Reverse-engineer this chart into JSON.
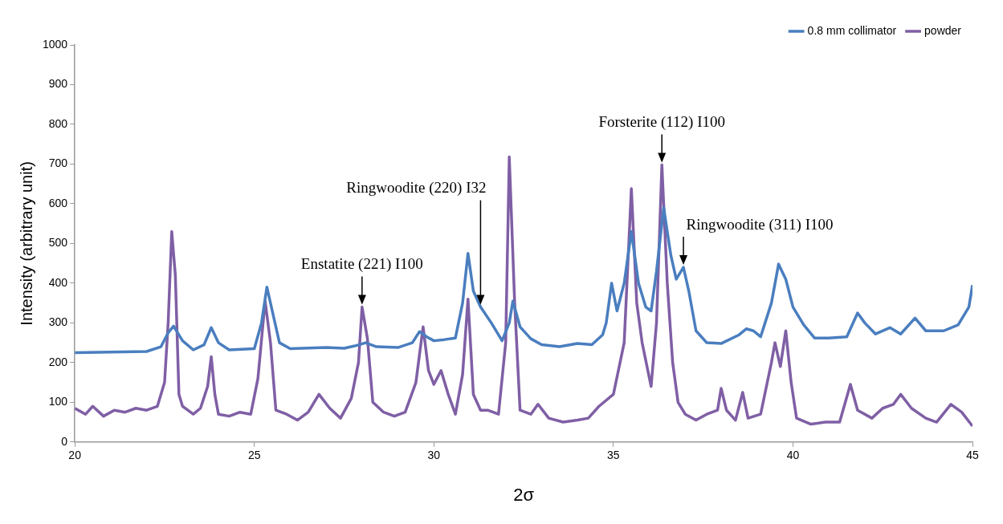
{
  "chart_data": {
    "type": "line",
    "xlabel": "2σ",
    "ylabel": "Intensity (arbitrary unit)",
    "xlim": [
      20,
      45
    ],
    "xticks": [
      20,
      25,
      30,
      35,
      40,
      45
    ],
    "ylim": [
      0,
      1000
    ],
    "yticks": [
      0,
      100,
      200,
      300,
      400,
      500,
      600,
      700,
      800,
      900,
      1000
    ],
    "grid": false,
    "legend": "top right",
    "marker": "none",
    "line_style": "solid",
    "annotations": [
      {
        "text": "Enstatite (221) I100",
        "x": 28,
        "y": 340
      },
      {
        "text": "Ringwoodite (220) I32",
        "x": 31.3,
        "y": 340
      },
      {
        "text": "Forsterite (112) I100",
        "x": 36.35,
        "y": 698
      },
      {
        "text": "Ringwoodite (311) I100",
        "x": 36.95,
        "y": 440
      }
    ],
    "series": [
      {
        "name": "0.8 mm collimator",
        "color": "#4a7ebf",
        "x": [
          20,
          22,
          22.4,
          22.6,
          22.75,
          23,
          23.3,
          23.6,
          23.8,
          24,
          24.3,
          25,
          25.2,
          25.35,
          25.5,
          25.7,
          26,
          27,
          27.5,
          27.8,
          28.1,
          28.4,
          29,
          29.4,
          29.6,
          29.8,
          30,
          30.3,
          30.6,
          30.8,
          30.95,
          31.1,
          31.3,
          31.6,
          31.9,
          32.1,
          32.2,
          32.4,
          32.7,
          33,
          33.5,
          34,
          34.4,
          34.7,
          34.8,
          34.95,
          35.1,
          35.3,
          35.5,
          35.7,
          35.9,
          36.05,
          36.2,
          36.4,
          36.6,
          36.75,
          36.95,
          37.1,
          37.3,
          37.6,
          38,
          38.5,
          38.7,
          38.9,
          39.1,
          39.4,
          39.6,
          39.8,
          40,
          40.3,
          40.6,
          41,
          41.5,
          41.8,
          42,
          42.3,
          42.7,
          43,
          43.4,
          43.7,
          44.2,
          44.6,
          44.9,
          45
        ],
        "values": [
          225,
          228,
          240,
          275,
          292,
          255,
          232,
          245,
          288,
          250,
          232,
          235,
          300,
          390,
          330,
          250,
          235,
          238,
          236,
          242,
          250,
          240,
          238,
          250,
          278,
          265,
          255,
          258,
          262,
          350,
          475,
          380,
          340,
          300,
          255,
          300,
          355,
          290,
          260,
          245,
          240,
          248,
          245,
          270,
          300,
          400,
          330,
          400,
          530,
          400,
          340,
          330,
          430,
          590,
          470,
          410,
          440,
          380,
          280,
          250,
          248,
          270,
          285,
          280,
          265,
          350,
          448,
          410,
          340,
          295,
          262,
          262,
          265,
          325,
          300,
          272,
          288,
          272,
          312,
          280,
          280,
          295,
          340,
          395
        ]
      },
      {
        "name": "powder",
        "color": "#7f5fa5",
        "x": [
          20,
          20.3,
          20.5,
          20.8,
          21.1,
          21.4,
          21.7,
          22,
          22.3,
          22.5,
          22.6,
          22.7,
          22.8,
          22.9,
          23,
          23.3,
          23.5,
          23.7,
          23.8,
          23.9,
          24,
          24.3,
          24.6,
          24.9,
          25.1,
          25.3,
          25.45,
          25.6,
          25.9,
          26.2,
          26.5,
          26.8,
          27.1,
          27.4,
          27.7,
          27.9,
          28,
          28.15,
          28.3,
          28.6,
          28.9,
          29.2,
          29.5,
          29.7,
          29.85,
          30,
          30.2,
          30.4,
          30.6,
          30.8,
          30.95,
          31.1,
          31.3,
          31.5,
          31.8,
          32,
          32.1,
          32.25,
          32.4,
          32.7,
          32.9,
          33.2,
          33.6,
          34,
          34.3,
          34.6,
          35,
          35.3,
          35.5,
          35.65,
          35.8,
          36.05,
          36.2,
          36.35,
          36.5,
          36.65,
          36.8,
          37,
          37.3,
          37.6,
          37.9,
          38,
          38.15,
          38.4,
          38.6,
          38.75,
          39.1,
          39.4,
          39.5,
          39.65,
          39.8,
          39.95,
          40.1,
          40.5,
          40.9,
          41.3,
          41.6,
          41.8,
          42.2,
          42.5,
          42.8,
          43,
          43.3,
          43.7,
          44,
          44.4,
          44.7,
          45
        ],
        "values": [
          85,
          70,
          90,
          65,
          80,
          75,
          85,
          80,
          90,
          150,
          300,
          530,
          420,
          120,
          90,
          70,
          85,
          140,
          215,
          120,
          70,
          65,
          75,
          70,
          160,
          355,
          250,
          80,
          70,
          55,
          75,
          120,
          85,
          60,
          110,
          200,
          340,
          260,
          100,
          75,
          65,
          75,
          150,
          290,
          180,
          145,
          180,
          120,
          70,
          170,
          360,
          120,
          80,
          80,
          70,
          250,
          718,
          350,
          80,
          70,
          95,
          60,
          50,
          55,
          60,
          90,
          120,
          250,
          638,
          350,
          250,
          140,
          300,
          698,
          400,
          200,
          100,
          70,
          55,
          70,
          80,
          135,
          80,
          55,
          125,
          60,
          70,
          200,
          250,
          190,
          280,
          150,
          60,
          45,
          50,
          50,
          145,
          80,
          60,
          85,
          95,
          120,
          85,
          60,
          50,
          95,
          75,
          40
        ]
      }
    ]
  }
}
